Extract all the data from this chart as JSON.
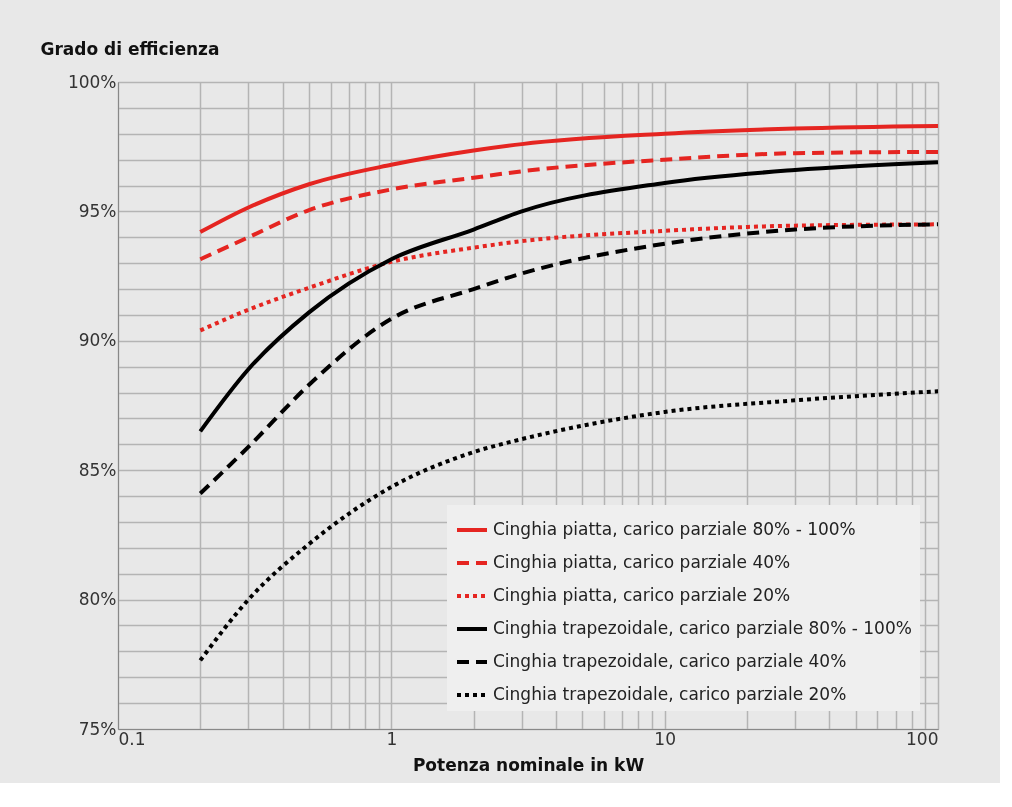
{
  "chart_data": {
    "type": "line",
    "xlabel": "Potenza nominale in kW",
    "ylabel": "Grado di efficienza",
    "log": "x",
    "xlim": [
      0.1,
      100
    ],
    "xticks": [
      {
        "value": 0.1,
        "label": "0.1"
      },
      {
        "value": 0.2,
        "label": null
      },
      {
        "value": 0.3,
        "label": null
      },
      {
        "value": 0.4,
        "label": null
      },
      {
        "value": 0.5,
        "label": null
      },
      {
        "value": 0.6,
        "label": null
      },
      {
        "value": 0.7,
        "label": null
      },
      {
        "value": 0.8,
        "label": null
      },
      {
        "value": 0.9,
        "label": null
      },
      {
        "value": 1,
        "label": "1"
      },
      {
        "value": 2,
        "label": null
      },
      {
        "value": 3,
        "label": null
      },
      {
        "value": 4,
        "label": null
      },
      {
        "value": 5,
        "label": null
      },
      {
        "value": 6,
        "label": null
      },
      {
        "value": 7,
        "label": null
      },
      {
        "value": 8,
        "label": null
      },
      {
        "value": 9,
        "label": null
      },
      {
        "value": 10,
        "label": "10"
      },
      {
        "value": 20,
        "label": null
      },
      {
        "value": 30,
        "label": null
      },
      {
        "value": 40,
        "label": null
      },
      {
        "value": 50,
        "label": null
      },
      {
        "value": 60,
        "label": null
      },
      {
        "value": 70,
        "label": null
      },
      {
        "value": 80,
        "label": null
      },
      {
        "value": 90,
        "label": null
      },
      {
        "value": 100,
        "label": "100"
      }
    ],
    "ylim": [
      75,
      100
    ],
    "yticks": [
      {
        "value": 75,
        "label": "75%"
      },
      {
        "value": 76,
        "label": null
      },
      {
        "value": 77,
        "label": null
      },
      {
        "value": 78,
        "label": null
      },
      {
        "value": 79,
        "label": null
      },
      {
        "value": 80,
        "label": "80%"
      },
      {
        "value": 81,
        "label": null
      },
      {
        "value": 82,
        "label": null
      },
      {
        "value": 83,
        "label": null
      },
      {
        "value": 84,
        "label": null
      },
      {
        "value": 85,
        "label": "85%"
      },
      {
        "value": 86,
        "label": null
      },
      {
        "value": 87,
        "label": null
      },
      {
        "value": 88,
        "label": null
      },
      {
        "value": 89,
        "label": null
      },
      {
        "value": 90,
        "label": "90%"
      },
      {
        "value": 91,
        "label": null
      },
      {
        "value": 92,
        "label": null
      },
      {
        "value": 93,
        "label": null
      },
      {
        "value": 94,
        "label": null
      },
      {
        "value": 95,
        "label": "95%"
      },
      {
        "value": 96,
        "label": null
      },
      {
        "value": 97,
        "label": null
      },
      {
        "value": 98,
        "label": null
      },
      {
        "value": 99,
        "label": null
      },
      {
        "value": 100,
        "label": "100%"
      }
    ],
    "grid": true,
    "legend": "bottom right",
    "x": [
      0.2,
      0.3,
      0.5,
      1,
      2,
      3,
      10,
      30,
      100
    ],
    "series": [
      {
        "name": "Cinghia piatta, carico parziale 80% - 100%",
        "color": "#e52521",
        "line_style": "solid",
        "values": [
          94.2,
          95.15,
          96.05,
          96.8,
          97.35,
          97.6,
          98.0,
          98.2,
          98.3
        ]
      },
      {
        "name": "Cinghia piatta, carico parziale 40%",
        "color": "#e52521",
        "line_style": "dashed",
        "values": [
          93.15,
          94.0,
          95.05,
          95.85,
          96.3,
          96.55,
          97.0,
          97.25,
          97.3
        ]
      },
      {
        "name": "Cinghia piatta, carico parziale 20%",
        "color": "#e52521",
        "line_style": "dotted",
        "values": [
          90.4,
          91.2,
          92.05,
          93.05,
          93.6,
          93.85,
          94.25,
          94.45,
          94.5
        ]
      },
      {
        "name": "Cinghia trapezoidale, carico parziale 80% - 100%",
        "color": "#000000",
        "line_style": "solid",
        "values": [
          86.5,
          88.9,
          91.1,
          93.15,
          94.3,
          95.0,
          96.1,
          96.6,
          96.9
        ]
      },
      {
        "name": "Cinghia trapezoidale, carico parziale 40%",
        "color": "#000000",
        "line_style": "dashed",
        "values": [
          84.1,
          85.9,
          88.3,
          90.85,
          92.0,
          92.6,
          93.75,
          94.3,
          94.5
        ]
      },
      {
        "name": "Cinghia trapezoidale, carico parziale 20%",
        "color": "#000000",
        "line_style": "dotted",
        "values": [
          77.65,
          80.0,
          82.15,
          84.35,
          85.7,
          86.2,
          87.25,
          87.7,
          88.05
        ]
      }
    ]
  }
}
